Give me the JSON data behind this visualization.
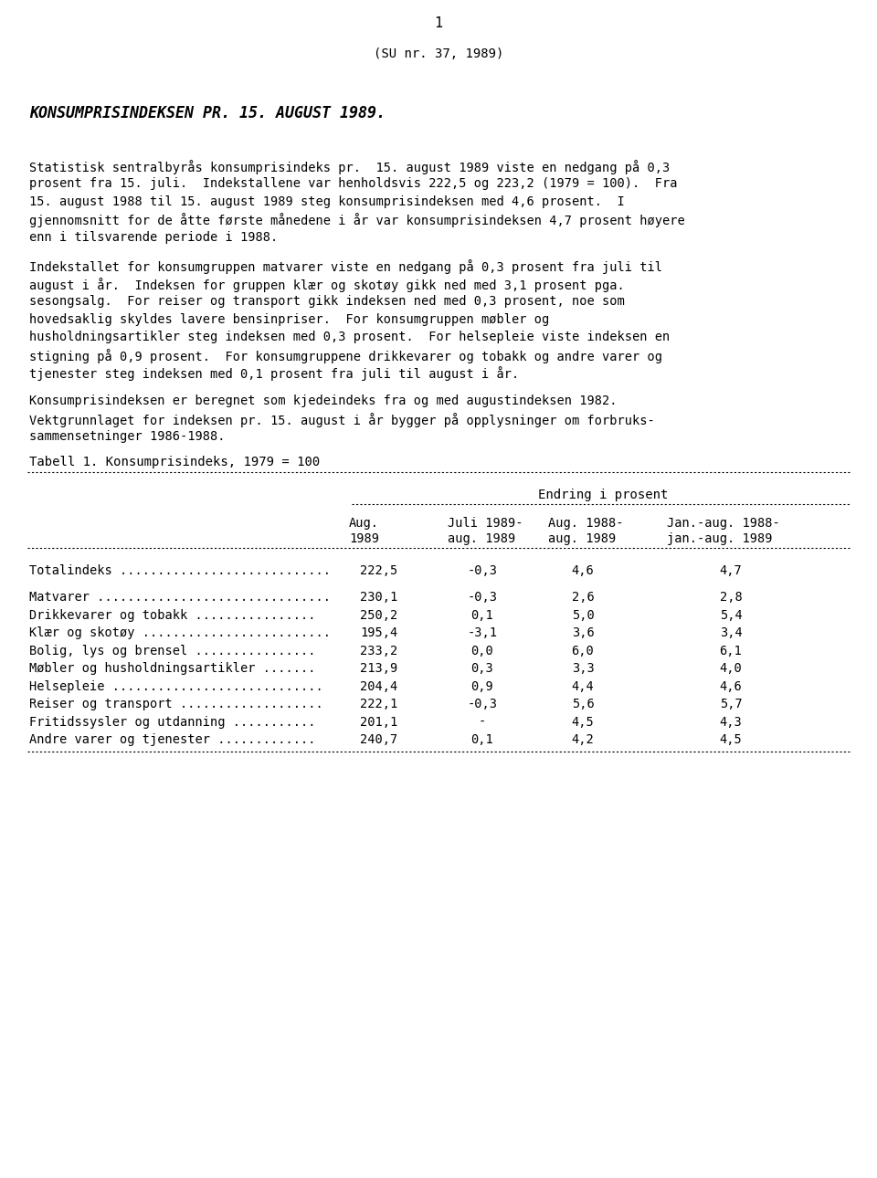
{
  "page_number": "1",
  "subtitle": "(SU nr. 37, 1989)",
  "heading": "KONSUMPRISINDEKSEN PR. 15. AUGUST 1989.",
  "paragraphs": [
    "Statistisk sentralbyrås konsumprisindeks pr.  15. august 1989 viste en nedgang på 0,3",
    "prosent fra 15. juli.  Indekstallene var henholdsvis 222,5 og 223,2 (1979 = 100).  Fra",
    "15. august 1988 til 15. august 1989 steg konsumprisindeksen med 4,6 prosent.  I",
    "gjennomsnitt for de åtte første månedene i år var konsumprisindeksen 4,7 prosent høyere",
    "enn i tilsvarende periode i 1988.",
    "",
    "Indekstallet for konsumgruppen matvarer viste en nedgang på 0,3 prosent fra juli til",
    "august i år.  Indeksen for gruppen klær og skotøy gikk ned med 3,1 prosent pga.",
    "sesongsalg.  For reiser og transport gikk indeksen ned med 0,3 prosent, noe som",
    "hovedsaklig skyldes lavere bensinpriser.  For konsumgruppen møbler og",
    "husholdningsartikler steg indeksen med 0,3 prosent.  For helsepleie viste indeksen en",
    "stigning på 0,9 prosent.  For konsumgruppene drikkevarer og tobakk og andre varer og",
    "tjenester steg indeksen med 0,1 prosent fra juli til august i år.",
    "",
    "Konsumprisindeksen er beregnet som kjedeindeks fra og med augustindeksen 1982.",
    "Vektgrunnlaget for indeksen pr. 15. august i år bygger på opplysninger om forbruks-",
    "sammensetninger 1986-1988."
  ],
  "table_title": "Tabell 1. Konsumprisindeks, 1979 = 100",
  "endring_label": "Endring i prosent",
  "col_headers_line1": [
    "Aug.",
    "Juli 1989-",
    "Aug. 1988-",
    "Jan.-aug. 1988-"
  ],
  "col_headers_line2": [
    "1989",
    "aug. 1989",
    "aug. 1989",
    "jan.-aug. 1989"
  ],
  "rows": [
    [
      "Totalindeks ............................",
      "222,5",
      "-0,3",
      "4,6",
      "4,7"
    ],
    [
      "",
      "",
      "",
      "",
      ""
    ],
    [
      "Matvarer ...............................",
      "230,1",
      "-0,3",
      "2,6",
      "2,8"
    ],
    [
      "Drikkevarer og tobakk ................",
      "250,2",
      "0,1",
      "5,0",
      "5,4"
    ],
    [
      "Klær og skotøy .........................",
      "195,4",
      "-3,1",
      "3,6",
      "3,4"
    ],
    [
      "Bolig, lys og brensel ................",
      "233,2",
      "0,0",
      "6,0",
      "6,1"
    ],
    [
      "Møbler og husholdningsartikler .......",
      "213,9",
      "0,3",
      "3,3",
      "4,0"
    ],
    [
      "Helsepleie ............................",
      "204,4",
      "0,9",
      "4,4",
      "4,6"
    ],
    [
      "Reiser og transport ...................",
      "222,1",
      "-0,3",
      "5,6",
      "5,7"
    ],
    [
      "Fritidssysler og utdanning ...........",
      "201,1",
      "-",
      "4,5",
      "4,3"
    ],
    [
      "Andre varer og tjenester .............",
      "240,7",
      "0,1",
      "4,2",
      "4,5"
    ]
  ],
  "bg_color": "#ffffff",
  "text_color": "#000000"
}
